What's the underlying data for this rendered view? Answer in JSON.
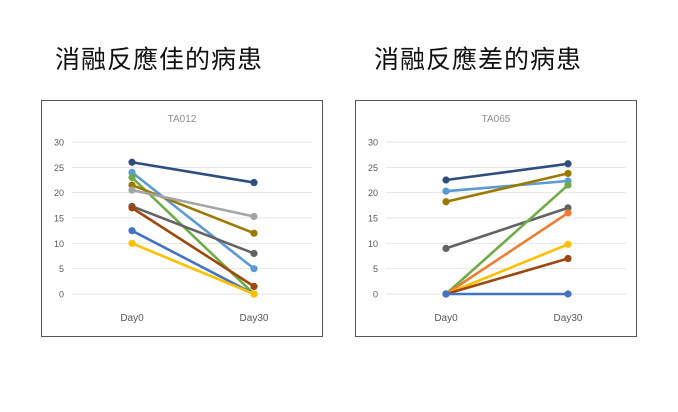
{
  "headings": {
    "left": "消融反應佳的病患",
    "right": "消融反應差的病患"
  },
  "chart_data": [
    {
      "type": "line",
      "title": "TA012",
      "categories": [
        "Day0",
        "Day30"
      ],
      "ylim": [
        0,
        30
      ],
      "yticks": [
        0,
        5,
        10,
        15,
        20,
        25,
        30
      ],
      "grid": true,
      "series": [
        {
          "values": [
            26,
            22
          ],
          "color": "#2e4e7e"
        },
        {
          "values": [
            24,
            5
          ],
          "color": "#5b9bd5"
        },
        {
          "values": [
            23,
            0
          ],
          "color": "#70ad47"
        },
        {
          "values": [
            21.5,
            12
          ],
          "color": "#9c7a00"
        },
        {
          "values": [
            20.5,
            15.3
          ],
          "color": "#a5a5a5"
        },
        {
          "values": [
            17.3,
            8
          ],
          "color": "#636363"
        },
        {
          "values": [
            17,
            1.5
          ],
          "color": "#9e480e"
        },
        {
          "values": [
            12.5,
            0
          ],
          "color": "#4472c4"
        },
        {
          "values": [
            10,
            0
          ],
          "color": "#ffc000"
        }
      ]
    },
    {
      "type": "line",
      "title": "TA065",
      "categories": [
        "Day0",
        "Day30"
      ],
      "ylim": [
        0,
        30
      ],
      "yticks": [
        0,
        5,
        10,
        15,
        20,
        25,
        30
      ],
      "grid": true,
      "series": [
        {
          "values": [
            22.5,
            25.7
          ],
          "color": "#2e4e7e"
        },
        {
          "values": [
            20.3,
            22.3
          ],
          "color": "#5b9bd5"
        },
        {
          "values": [
            18.2,
            23.8
          ],
          "color": "#9c7a00"
        },
        {
          "values": [
            9,
            17
          ],
          "color": "#636363"
        },
        {
          "values": [
            0,
            21.5
          ],
          "color": "#70ad47"
        },
        {
          "values": [
            0,
            16
          ],
          "color": "#ed7d31"
        },
        {
          "values": [
            0,
            9.8
          ],
          "color": "#ffc000"
        },
        {
          "values": [
            0,
            7
          ],
          "color": "#9e480e"
        },
        {
          "values": [
            0,
            0
          ],
          "color": "#4472c4"
        }
      ]
    }
  ]
}
